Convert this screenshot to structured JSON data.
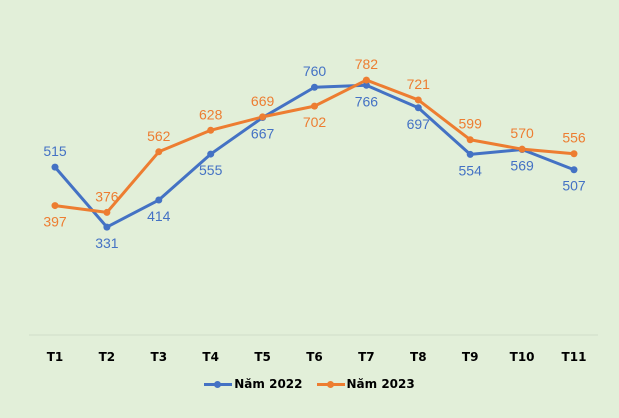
{
  "chart_data": {
    "type": "line",
    "title": "",
    "xlabel": "",
    "ylabel": "",
    "categories": [
      "T1",
      "T2",
      "T3",
      "T4",
      "T5",
      "T6",
      "T7",
      "T8",
      "T9",
      "T10",
      "T11"
    ],
    "series": [
      {
        "name": "Năm 2022",
        "color": "#4472c4",
        "values": [
          515,
          331,
          414,
          555,
          667,
          760,
          766,
          697,
          554,
          569,
          507
        ],
        "labels": [
          "515",
          "331",
          "414",
          "555",
          "667",
          "760",
          "766",
          "697",
          "554",
          "569",
          "507"
        ]
      },
      {
        "name": "Năm 2023",
        "color": "#ed7d31",
        "values": [
          397,
          376,
          562,
          628,
          669,
          702,
          782,
          721,
          599,
          570,
          556
        ],
        "labels": [
          "397",
          "376",
          "562",
          "628",
          "669",
          "702",
          "782",
          "721",
          "599",
          "570",
          "556"
        ]
      }
    ],
    "ylim": [
      0,
      900
    ],
    "grid": false,
    "legend": "bottom"
  }
}
